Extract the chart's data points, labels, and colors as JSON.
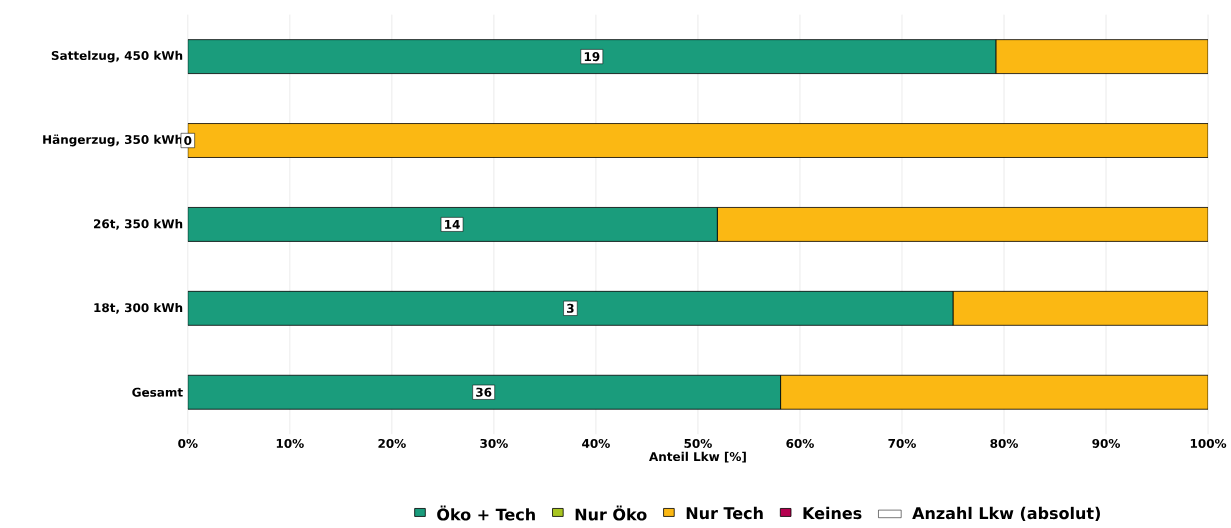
{
  "chart_data": {
    "type": "bar",
    "orientation": "horizontal",
    "stacked": true,
    "categories": [
      "Sattelzug, 450 kWh",
      "Hängerzug, 350 kWh",
      "26t, 350 kWh",
      "18t, 300 kWh",
      "Gesamt"
    ],
    "series": [
      {
        "name": "Öko + Tech",
        "color": "#1a9c7c",
        "values": [
          79.2,
          0,
          51.9,
          75,
          58.1
        ]
      },
      {
        "name": "Nur Öko",
        "color": "#a8c520",
        "values": [
          0,
          0,
          0,
          0,
          0
        ]
      },
      {
        "name": "Nur Tech",
        "color": "#fbb813",
        "values": [
          20.8,
          100,
          48.1,
          25,
          41.9
        ]
      },
      {
        "name": "Keines",
        "color": "#b5004f",
        "values": [
          0,
          0,
          0,
          0,
          0
        ]
      },
      {
        "name": "Anzahl Lkw (absolut)",
        "color": "#ffffff",
        "values": [
          null,
          null,
          null,
          null,
          null
        ]
      }
    ],
    "xlabel": "Anteil Lkw [%]",
    "xlim": [
      0,
      100
    ],
    "xticks": [
      {
        "value": 0,
        "label": "0%"
      },
      {
        "value": 10,
        "label": "10%"
      },
      {
        "value": 20,
        "label": "20%"
      },
      {
        "value": 30,
        "label": "30%"
      },
      {
        "value": 40,
        "label": "40%"
      },
      {
        "value": 50,
        "label": "50%"
      },
      {
        "value": 60,
        "label": "60%"
      },
      {
        "value": 70,
        "label": "70%"
      },
      {
        "value": 80,
        "label": "80%"
      },
      {
        "value": 90,
        "label": "90%"
      },
      {
        "value": 100,
        "label": "100%"
      }
    ],
    "grid": "x",
    "legend": "bottom",
    "annotations": [
      {
        "text": "19",
        "x": 39.6,
        "y": "Sattelzug, 450 kWh"
      },
      {
        "text": "0",
        "x": 0,
        "y": "Hängerzug, 350 kWh"
      },
      {
        "text": "14",
        "x": 25.9,
        "y": "26t, 350 kWh"
      },
      {
        "text": "3",
        "x": 37.5,
        "y": "18t, 300 kWh"
      },
      {
        "text": "36",
        "x": 29.0,
        "y": "Gesamt"
      }
    ]
  }
}
